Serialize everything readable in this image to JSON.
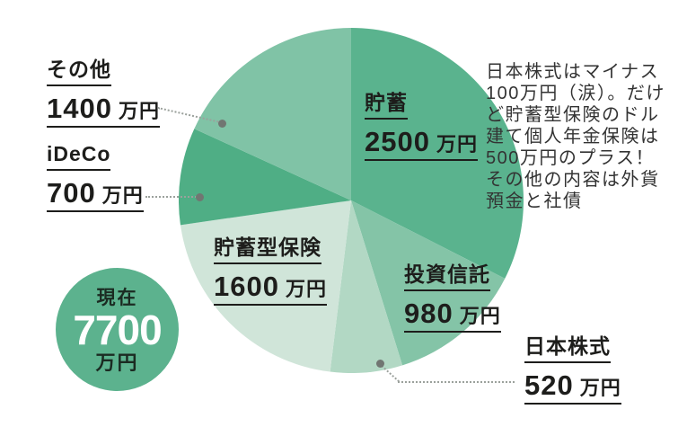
{
  "chart_data": {
    "type": "pie",
    "unit": "万円",
    "total": 7700,
    "start_angle_deg": 0,
    "direction": "clockwise",
    "legend_position": "around-slices",
    "slices": [
      {
        "key": "chochiku",
        "label": "貯蓄",
        "value": 2500,
        "color": "#5ab38e"
      },
      {
        "key": "toshishintaku",
        "label": "投資信託",
        "value": 980,
        "color": "#84c4a7"
      },
      {
        "key": "nihonkabushiki",
        "label": "日本株式",
        "value": 520,
        "color": "#b2d8c4"
      },
      {
        "key": "chochikugata-hoken",
        "label": "貯蓄型保険",
        "value": 1600,
        "color": "#d0e5d9"
      },
      {
        "key": "ideco",
        "label": "iDeCo",
        "value": 700,
        "color": "#4fae85"
      },
      {
        "key": "sonota",
        "label": "その他",
        "value": 1400,
        "color": "#80c3a6"
      }
    ]
  },
  "labels": {
    "sonota": {
      "name": "その他",
      "num": "1400",
      "unit": "万円"
    },
    "ideco": {
      "name": "iDeCo",
      "num": "700",
      "unit": "万円"
    },
    "chochiku": {
      "name": "貯蓄",
      "num": "2500",
      "unit": "万円"
    },
    "chochikugata_hoken": {
      "name": "貯蓄型保険",
      "num": "1600",
      "unit": "万円"
    },
    "toshishintaku": {
      "name": "投資信託",
      "num": "980",
      "unit": "万円"
    },
    "nihonkabushiki": {
      "name": "日本株式",
      "num": "520",
      "unit": "万円"
    }
  },
  "badge": {
    "prefix": "現在",
    "number": "7700",
    "suffix": "万円"
  },
  "note": {
    "text": "日本株式はマイナス\n100万円（涙）。だけ\nど貯蓄型保険のドル\n建て個人年金保険は\n500万円のプラス！\nその他の内容は外貨\n預金と社債"
  },
  "colors": {
    "background": "#ffffff",
    "badge": "#5cb28e",
    "label_text": "#1d1d1b",
    "note_text": "#333333",
    "leader_line": "#9ba19c",
    "leader_dot": "#717672"
  }
}
